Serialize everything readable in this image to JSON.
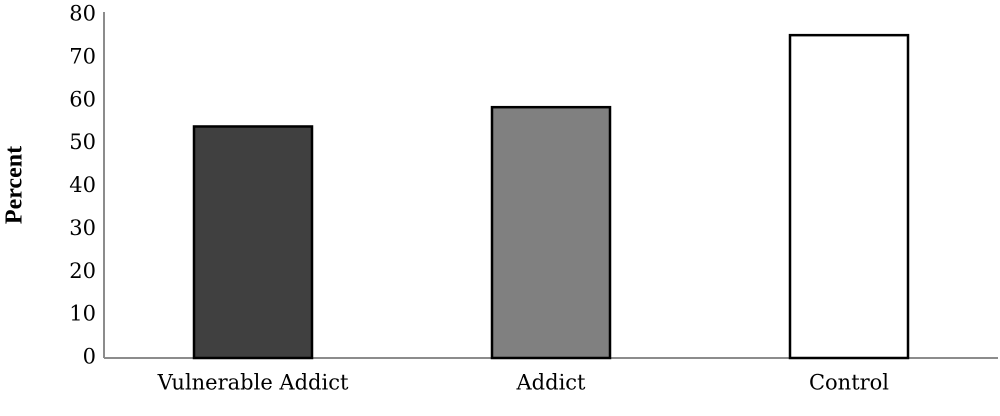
{
  "chart_data": {
    "type": "bar",
    "y_label": "Percent",
    "categories": [
      "Vulnerable Addict",
      "Addict",
      "Control"
    ],
    "values": [
      54,
      58.5,
      75.3
    ],
    "colors": [
      "#404040",
      "#808080",
      "#ffffff"
    ],
    "ylim": [
      0,
      80
    ],
    "yticks": [
      0,
      10,
      20,
      30,
      40,
      50,
      60,
      70,
      80
    ],
    "grid": false
  }
}
